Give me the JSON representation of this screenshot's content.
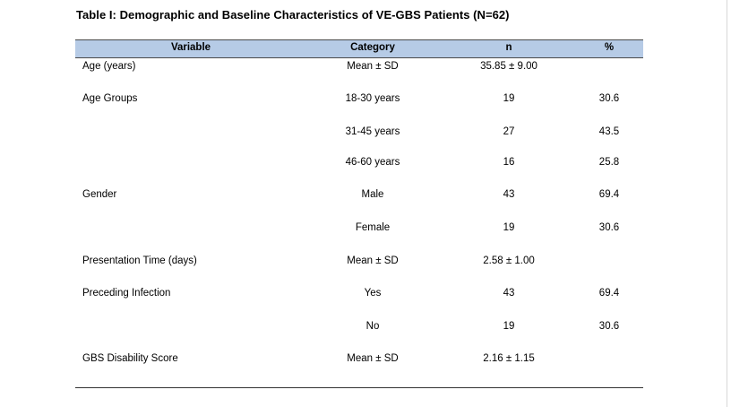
{
  "title": "Table I: Demographic and Baseline Characteristics of VE-GBS Patients (N=62)",
  "headers": {
    "variable": "Variable",
    "category": "Category",
    "n": "n",
    "pct": "%"
  },
  "rows": [
    {
      "variable": "Age (years)",
      "category": "Mean ± SD",
      "n": "35.85 ± 9.00",
      "pct": ""
    },
    {
      "variable": "Age Groups",
      "category": "18-30 years",
      "n": "19",
      "pct": "30.6"
    },
    {
      "variable": "",
      "category": "31-45 years",
      "n": "27",
      "pct": "43.5"
    },
    {
      "variable": "",
      "category": "46-60 years",
      "n": "16",
      "pct": "25.8"
    },
    {
      "variable": "Gender",
      "category": "Male",
      "n": "43",
      "pct": "69.4"
    },
    {
      "variable": "",
      "category": "Female",
      "n": "19",
      "pct": "30.6"
    },
    {
      "variable": "Presentation Time (days)",
      "category": "Mean ± SD",
      "n": "2.58 ± 1.00",
      "pct": ""
    },
    {
      "variable": "Preceding Infection",
      "category": "Yes",
      "n": "43",
      "pct": "69.4"
    },
    {
      "variable": "",
      "category": "No",
      "n": "19",
      "pct": "30.6"
    },
    {
      "variable": "GBS Disability Score",
      "category": "Mean ± SD",
      "n": "2.16 ± 1.15",
      "pct": ""
    }
  ]
}
